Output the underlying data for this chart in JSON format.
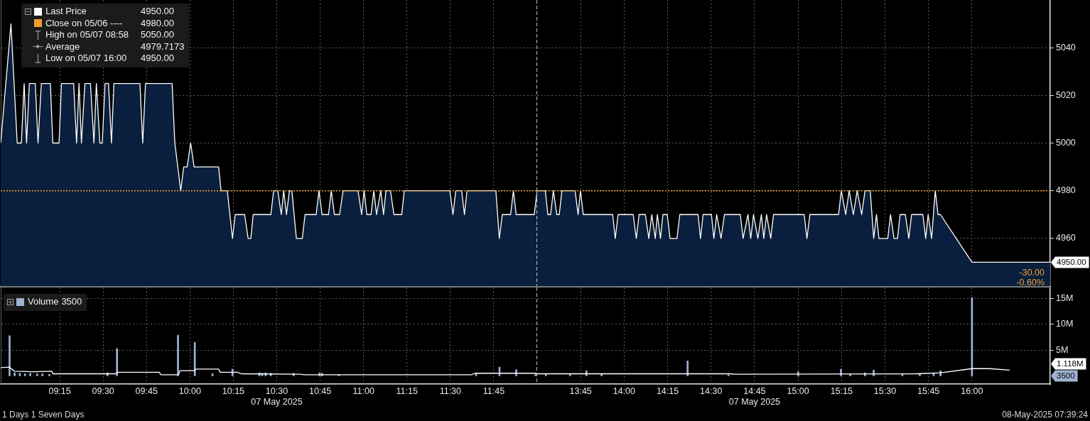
{
  "chart_data": [
    {
      "type": "area",
      "series": [
        {
          "name": "Last Price",
          "color": "#ffffff",
          "x": [
            8.91,
            8.969,
            9.005,
            9.029,
            9.045,
            9.059,
            9.075,
            9.109,
            9.125,
            9.144,
            9.196,
            9.21,
            9.246,
            9.26,
            9.33,
            9.347,
            9.361,
            9.375,
            9.395,
            9.427,
            9.447,
            9.461,
            9.481,
            9.495,
            9.511,
            9.531,
            9.548,
            9.562,
            9.712,
            9.728,
            9.744,
            9.897,
            9.913,
            9.947,
            9.964,
            9.984,
            10.004,
            10.024,
            10.165,
            10.179,
            10.215,
            10.245,
            10.261,
            10.315,
            10.335,
            10.351,
            10.364,
            10.466,
            10.482,
            10.506,
            10.526,
            10.54,
            10.556,
            10.573,
            10.587,
            10.613,
            10.647,
            10.663,
            10.727,
            10.743,
            10.761,
            10.798,
            10.814,
            10.832,
            10.862,
            10.882,
            10.968,
            10.989,
            11.003,
            11.019,
            11.043,
            11.059,
            11.075,
            11.099,
            11.115,
            11.129,
            11.155,
            11.175,
            11.22,
            11.234,
            11.497,
            11.515,
            11.531,
            11.565,
            11.581,
            11.596,
            11.762,
            11.782,
            11.799,
            11.847,
            11.863,
            11.879,
            11.983,
            12.0
          ],
          "values": [
            5000,
            5050,
            5000,
            5000,
            5025,
            5000,
            5025,
            5025,
            5000,
            5025,
            5025,
            5000,
            5000,
            5025,
            5025,
            5000,
            5025,
            5000,
            5025,
            5025,
            5000,
            5025,
            5000,
            5000,
            5025,
            5025,
            5000,
            5025,
            5025,
            5000,
            5025,
            5025,
            5000,
            4980,
            4990,
            4990,
            5000,
            4990,
            4990,
            4980,
            4980,
            4960,
            4970,
            4970,
            4960,
            4960,
            4970,
            4970,
            4980,
            4980,
            4970,
            4980,
            4970,
            4980,
            4980,
            4960,
            4960,
            4970,
            4970,
            4980,
            4970,
            4970,
            4980,
            4970,
            4970,
            4980,
            4980,
            4970,
            4980,
            4970,
            4970,
            4980,
            4970,
            4980,
            4970,
            4980,
            4980,
            4970,
            4970,
            4980,
            4980,
            4970,
            4980,
            4980,
            4970,
            4980,
            4980,
            4960,
            4970,
            4970,
            4980,
            4970,
            4970,
            4980
          ]
        }
      ],
      "xlim": [
        8.91,
        12
      ],
      "xticks": [
        {
          "value": 9.25,
          "label": null
        },
        {
          "value": 9.5,
          "label": null
        },
        {
          "value": 9.75,
          "label": null
        },
        {
          "value": 10,
          "label": null
        },
        {
          "value": 10.25,
          "label": null
        },
        {
          "value": 10.5,
          "label": null
        },
        {
          "value": 10.75,
          "label": null
        },
        {
          "value": 11,
          "label": null
        },
        {
          "value": 11.25,
          "label": null
        },
        {
          "value": 11.5,
          "label": null
        },
        {
          "value": 11.75,
          "label": null
        }
      ],
      "ylim": [
        4940,
        5060
      ],
      "yticks": [
        4960,
        4980,
        5000,
        5020,
        5040
      ],
      "grid": true,
      "legend": "top left",
      "tick_labels": false,
      "ref_lines": [
        {
          "axis": "y",
          "value": 4980,
          "label": "Close on 05/06 ----",
          "color": "#f0a030",
          "line_style": "dotted"
        },
        {
          "axis": "x",
          "value": 12,
          "color": "#bdbdbd",
          "line_style": "dashed"
        }
      ],
      "annotations": [
        "4950.00",
        "4980.00",
        "High on 05/07 08:58",
        "5050.00",
        "Average",
        "4979.7173",
        "Low on 05/07 16:00",
        "4950.00"
      ]
    },
    {
      "type": "area",
      "series": [
        {
          "color": "#ffffff",
          "x": [
            13.5,
            13.547,
            13.561,
            13.577,
            13.593,
            13.613,
            13.627,
            13.642,
            13.718,
            13.735,
            13.749,
            13.765,
            13.934,
            13.949,
            13.965,
            14.052,
            14.07,
            14.086,
            14.122,
            14.142,
            14.159,
            14.179,
            14.191,
            14.209,
            14.223,
            14.248,
            14.264,
            14.304,
            14.32,
            14.425,
            14.439,
            14.454,
            14.502,
            14.516,
            14.532,
            14.557,
            14.577,
            14.668,
            14.684,
            14.712,
            14.728,
            14.744,
            14.769,
            14.789,
            14.803,
            14.819,
            14.843,
            14.859,
            15.035,
            15.051,
            15.068,
            15.233,
            15.249,
            15.274,
            15.294,
            15.318,
            15.34,
            15.366,
            15.385,
            15.415,
            15.435,
            15.451,
            15.465,
            15.516,
            15.532,
            15.552,
            15.572,
            15.587,
            15.617,
            15.637,
            15.653,
            15.718,
            15.734,
            15.748,
            15.768,
            15.789,
            15.805,
            15.819,
            16.0,
            16.45
          ],
          "values": [
            4980,
            4980,
            4970,
            4970,
            4980,
            4970,
            4970,
            4980,
            4980,
            4970,
            4980,
            4970,
            4970,
            4960,
            4970,
            4970,
            4960,
            4970,
            4970,
            4960,
            4970,
            4960,
            4970,
            4960,
            4970,
            4970,
            4960,
            4960,
            4970,
            4970,
            4960,
            4970,
            4970,
            4960,
            4970,
            4960,
            4970,
            4970,
            4960,
            4970,
            4960,
            4970,
            4960,
            4970,
            4960,
            4970,
            4960,
            4970,
            4970,
            4960,
            4970,
            4970,
            4980,
            4970,
            4980,
            4970,
            4980,
            4970,
            4980,
            4980,
            4960,
            4970,
            4960,
            4960,
            4970,
            4960,
            4960,
            4970,
            4970,
            4960,
            4970,
            4970,
            4960,
            4970,
            4960,
            4980,
            4970,
            4970,
            4950,
            4950
          ]
        }
      ],
      "xlim": [
        13.5,
        16.45
      ],
      "xticks": [
        {
          "value": 13.75,
          "label": null
        },
        {
          "value": 14,
          "label": null
        },
        {
          "value": 14.25,
          "label": null
        },
        {
          "value": 14.5,
          "label": null
        },
        {
          "value": 14.75,
          "label": null
        },
        {
          "value": 15,
          "label": null
        },
        {
          "value": 15.25,
          "label": null
        },
        {
          "value": 15.5,
          "label": null
        },
        {
          "value": 15.75,
          "label": null
        },
        {
          "value": 16,
          "label": null
        }
      ],
      "ylim": [
        4940,
        5060
      ],
      "yticks": [
        4960,
        4980,
        5000,
        5020,
        5040
      ],
      "grid": true,
      "tick_labels": "y",
      "ref_lines": [
        {
          "axis": "y",
          "value": 4980,
          "color": "#f0a030",
          "line_style": "dotted"
        }
      ],
      "annotations": [
        "4950.00",
        "-30.00",
        "-0.60%"
      ]
    },
    {
      "type": "bar",
      "series": [
        {
          "name": "Volume",
          "color": "#9fb3d1",
          "x": [
            8.961,
            8.99,
            9.02,
            9.05,
            9.08,
            9.12,
            9.15,
            9.19,
            9.525,
            9.58,
            9.931,
            10.028,
            10.13,
            10.245,
            10.4,
            10.416,
            10.436,
            10.466,
            10.597,
            10.747,
            10.761,
            10.858,
            11.648,
            11.783,
            11.879,
            11.99
          ],
          "values": [
            7800000,
            600000,
            500000,
            400000,
            500000,
            400000,
            400000,
            300000,
            600000,
            5300000,
            7900000,
            6500000,
            400000,
            1300000,
            600000,
            500000,
            600000,
            500000,
            500000,
            600000,
            500000,
            300000,
            400000,
            1700000,
            1200000,
            300000
          ]
        },
        {
          "type": "line",
          "color": "#ffffff",
          "x": [
            8.91,
            8.959,
            8.989,
            9.099,
            9.205,
            9.21,
            9.572,
            9.582,
            9.823,
            9.833,
            9.933,
            9.943,
            10.024,
            10.034,
            10.165,
            10.175,
            10.275,
            10.295,
            10.637,
            10.657,
            11.622,
            11.642,
            12.0
          ],
          "values": [
            1600000,
            1700000,
            900000,
            800000,
            900000,
            400000,
            400000,
            700000,
            700000,
            200000,
            200000,
            1000000,
            1000000,
            1300000,
            1300000,
            700000,
            700000,
            400000,
            300000,
            200000,
            200000,
            500000,
            500000
          ]
        }
      ],
      "xlim": [
        8.91,
        12
      ],
      "xticks": [
        {
          "value": 9.25,
          "label": "09:15"
        },
        {
          "value": 9.5,
          "label": "09:30"
        },
        {
          "value": 9.75,
          "label": "09:45"
        },
        {
          "value": 10,
          "label": "10:00"
        },
        {
          "value": 10.25,
          "label": "10:15"
        },
        {
          "value": 10.5,
          "label": "10:30"
        },
        {
          "value": 10.75,
          "label": "10:45"
        },
        {
          "value": 11,
          "label": "11:00"
        },
        {
          "value": 11.25,
          "label": "11:15"
        },
        {
          "value": 11.5,
          "label": "11:30"
        },
        {
          "value": 11.75,
          "label": "11:45"
        }
      ],
      "ylim": [
        -1600000,
        17150000
      ],
      "yticks": [
        {
          "value": 5000000,
          "label": null
        },
        {
          "value": 10000000,
          "label": null
        },
        {
          "value": 15000000,
          "label": null
        }
      ],
      "grid": true,
      "legend": "top left",
      "tick_labels": "x",
      "ref_lines": [
        {
          "axis": "x",
          "value": 12,
          "color": "#bdbdbd",
          "line_style": "dashed"
        }
      ],
      "annotations": [
        "3500",
        "07 May 2025"
      ]
    },
    {
      "type": "bar",
      "series": [
        {
          "color": "#9fb3d1",
          "x": [
            13.55,
            13.689,
            13.783,
            13.87,
            14.365,
            14.6,
            15.001,
            15.247,
            15.3,
            15.385,
            15.435,
            15.6,
            15.7,
            15.78,
            15.819,
            16.0
          ],
          "values": [
            300000,
            400000,
            1000000,
            400000,
            2900000,
            200000,
            800000,
            1300000,
            300000,
            600000,
            1100000,
            300000,
            400000,
            500000,
            1000000,
            15200000
          ]
        },
        {
          "type": "line",
          "color": "#ffffff",
          "x": [
            13.5,
            14.607,
            14.64,
            15.678,
            15.819,
            16.0,
            16.1,
            16.217
          ],
          "values": [
            400000,
            400000,
            300000,
            400000,
            600000,
            1400000,
            1400000,
            1118000
          ]
        }
      ],
      "xlim": [
        13.5,
        16.45
      ],
      "xticks": [
        {
          "value": 13.75,
          "label": "13:45"
        },
        {
          "value": 14,
          "label": "14:00"
        },
        {
          "value": 14.25,
          "label": "14:15"
        },
        {
          "value": 14.5,
          "label": "14:30"
        },
        {
          "value": 14.75,
          "label": "14:45"
        },
        {
          "value": 15,
          "label": "15:00"
        },
        {
          "value": 15.25,
          "label": "15:15"
        },
        {
          "value": 15.5,
          "label": "15:30"
        },
        {
          "value": 15.75,
          "label": "15:45"
        },
        {
          "value": 16,
          "label": "16:00"
        }
      ],
      "ylim": [
        -1600000,
        17150000
      ],
      "yticks": [
        {
          "value": 5000000,
          "label": "5M"
        },
        {
          "value": 10000000,
          "label": "10M"
        },
        {
          "value": 15000000,
          "label": "15M"
        }
      ],
      "grid": true,
      "annotations": [
        "07 May 2025",
        "3500",
        "1.118M"
      ]
    },
    {
      "type": "other",
      "annotations": [
        "1 Days 1 Seven Days",
        "08-May-2025 07:39:24"
      ]
    }
  ]
}
